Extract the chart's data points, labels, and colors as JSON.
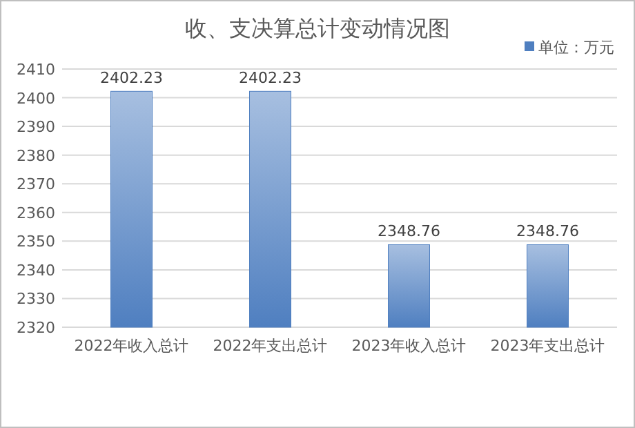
{
  "chart_data": {
    "type": "bar",
    "title": "收、支决算总计变动情况图",
    "categories": [
      "2022年收入总计",
      "2022年支出总计",
      "2023年收入总计",
      "2023年支出总计"
    ],
    "series": [
      {
        "name": "单位：万元",
        "color": "#4f7fc0",
        "values": [
          2402.23,
          2402.23,
          2348.76,
          2348.76
        ]
      }
    ],
    "ylim": [
      2320,
      2410
    ],
    "yticks": [
      2320,
      2330,
      2340,
      2350,
      2360,
      2370,
      2380,
      2390,
      2400,
      2410
    ],
    "grid": "y",
    "legend": "top right",
    "data_labels": true
  }
}
